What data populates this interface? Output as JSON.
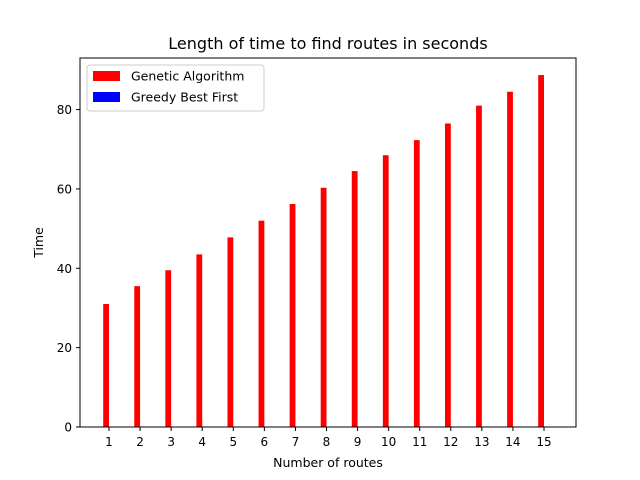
{
  "chart_data": {
    "type": "bar",
    "title": "Length of time to find routes in seconds",
    "xlabel": "Number of routes",
    "ylabel": "Time",
    "categories": [
      "1",
      "2",
      "3",
      "4",
      "5",
      "6",
      "7",
      "8",
      "9",
      "10",
      "11",
      "12",
      "13",
      "14",
      "15"
    ],
    "series": [
      {
        "name": "Genetic Algorithm",
        "color": "#ff0000",
        "values": [
          31.0,
          35.5,
          39.5,
          43.5,
          47.8,
          52.0,
          56.2,
          60.3,
          64.5,
          68.5,
          72.3,
          76.5,
          81.0,
          84.5,
          88.7
        ]
      },
      {
        "name": "Greedy Best First",
        "color": "#0000ff",
        "values": [
          0.02,
          0.02,
          0.02,
          0.02,
          0.02,
          0.02,
          0.02,
          0.02,
          0.02,
          0.02,
          0.02,
          0.02,
          0.02,
          0.02,
          0.02
        ]
      }
    ],
    "ylim": [
      0,
      93
    ],
    "yticks": [
      0,
      20,
      40,
      60,
      80
    ],
    "grid": false,
    "legend": "top-left"
  }
}
